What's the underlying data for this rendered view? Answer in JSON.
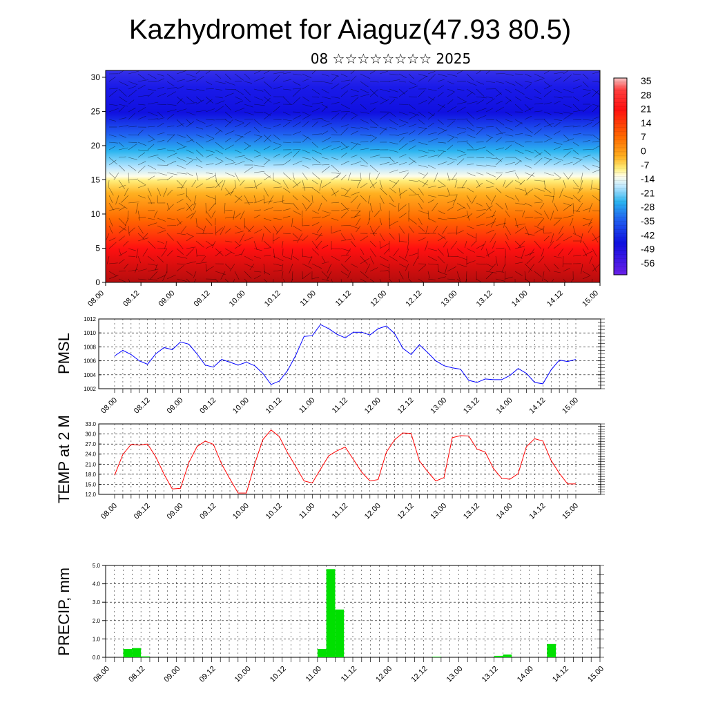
{
  "title": "Kazhydromet for Aiaguz(47.93 80.5)",
  "subtitle": "08 ☆☆☆☆☆☆☆☆ 2025",
  "x_tick_labels": [
    "08.00",
    "08.12",
    "09.00",
    "09.12",
    "10.00",
    "10.12",
    "11.00",
    "11.12",
    "12.00",
    "12.12",
    "13.00",
    "13.12",
    "14.00",
    "14.12",
    "15.00"
  ],
  "chart_data": [
    {
      "type": "heatmap",
      "title": "Kazhydromet for Aiaguz(47.93 80.5)",
      "subtitle": "08 ☆☆☆☆☆☆☆☆ 2025",
      "x_categories": [
        "08.00",
        "08.12",
        "09.00",
        "09.12",
        "10.00",
        "10.12",
        "11.00",
        "11.12",
        "12.00",
        "12.12",
        "13.00",
        "13.12",
        "14.00",
        "14.12",
        "15.00"
      ],
      "y_ticks": [
        0,
        5,
        10,
        15,
        20,
        25,
        30
      ],
      "ylim": [
        0,
        31
      ],
      "colorbar_labels": [
        "35",
        "28",
        "21",
        "14",
        "7",
        "0",
        "-7",
        "-14",
        "-21",
        "-28",
        "-35",
        "-42",
        "-49",
        "-56"
      ],
      "colorbar_range": [
        -60,
        40
      ],
      "overlay": "wind barbs",
      "temperature_profile": {
        "heights": [
          0,
          5,
          10,
          15,
          18,
          20,
          22,
          25,
          28,
          31
        ],
        "values": [
          30,
          22,
          8,
          -4,
          -20,
          -32,
          -42,
          -52,
          -56,
          -55
        ]
      }
    },
    {
      "type": "line",
      "ylabel": "PMSL",
      "ylim": [
        1002,
        1012
      ],
      "y_ticks": [
        "1002",
        "1004",
        "1006",
        "1008",
        "1010",
        "1012"
      ],
      "color": "#0000ff",
      "x_step_hours": 3,
      "values": [
        1006.7,
        1007.5,
        1006.9,
        1006.0,
        1005.5,
        1007.0,
        1007.9,
        1007.6,
        1008.7,
        1008.4,
        1007.0,
        1005.4,
        1005.1,
        1006.2,
        1005.8,
        1005.4,
        1005.8,
        1005.3,
        1004.2,
        1002.6,
        1003.1,
        1004.6,
        1006.8,
        1009.5,
        1009.6,
        1011.2,
        1010.6,
        1009.8,
        1009.3,
        1010.1,
        1010.1,
        1009.7,
        1010.6,
        1011.0,
        1009.9,
        1007.8,
        1006.9,
        1008.3,
        1007.2,
        1006.0,
        1005.3,
        1005.0,
        1004.8,
        1003.2,
        1002.9,
        1003.4,
        1003.3,
        1003.3,
        1003.9,
        1004.9,
        1004.2,
        1002.9,
        1002.7,
        1004.7,
        1006.1,
        1005.9,
        1006.2
      ]
    },
    {
      "type": "line",
      "ylabel": "TEMP at 2 M",
      "ylim": [
        12,
        33
      ],
      "y_ticks": [
        "12.0",
        "15.0",
        "18.0",
        "21.0",
        "24.0",
        "27.0",
        "30.0",
        "33.0"
      ],
      "color": "#ff0000",
      "x_step_hours": 3,
      "values": [
        17.7,
        23.9,
        26.9,
        26.7,
        27.0,
        23.2,
        18.0,
        13.6,
        13.8,
        21.4,
        26.2,
        27.9,
        26.9,
        21.0,
        16.6,
        12.4,
        12.4,
        21.0,
        28.3,
        31.2,
        29.2,
        24.4,
        20.3,
        16.0,
        15.4,
        19.5,
        23.5,
        25.0,
        26.1,
        22.4,
        18.6,
        16.0,
        16.4,
        24.6,
        28.3,
        30.3,
        30.2,
        22.0,
        18.8,
        16.0,
        17.0,
        28.9,
        29.5,
        29.4,
        25.5,
        24.6,
        19.7,
        16.8,
        16.5,
        18.2,
        26.2,
        28.6,
        27.9,
        22.1,
        18.3,
        15.1,
        15.1
      ]
    },
    {
      "type": "bar",
      "ylabel": "PRECIP, mm",
      "ylim": [
        0,
        5
      ],
      "y_ticks": [
        "0.0",
        "1.0",
        "2.0",
        "3.0",
        "4.0",
        "5.0"
      ],
      "color": "#00e000",
      "x_step_hours": 3,
      "values": [
        0,
        0,
        0.45,
        0.5,
        0.05,
        0,
        0,
        0,
        0,
        0,
        0,
        0,
        0,
        0,
        0,
        0,
        0,
        0,
        0,
        0,
        0,
        0,
        0,
        0,
        0.45,
        4.8,
        2.6,
        0,
        0,
        0,
        0,
        0,
        0,
        0,
        0,
        0,
        0,
        0.03,
        0,
        0,
        0,
        0,
        0,
        0,
        0.08,
        0.15,
        0,
        0,
        0,
        0,
        0.72,
        0,
        0,
        0,
        0,
        0
      ]
    }
  ]
}
